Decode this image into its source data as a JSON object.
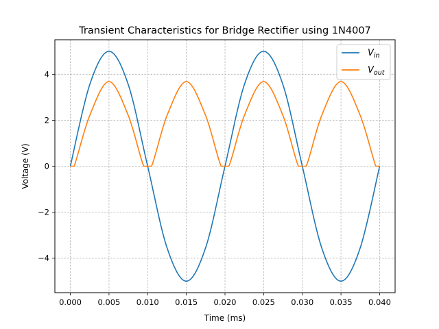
{
  "chart_data": {
    "type": "line",
    "title": "Transient Characteristics for Bridge Rectifier using 1N4007",
    "xlabel": "Time (ms)",
    "ylabel": "Voltage (V)",
    "xlim": [
      -0.002,
      0.042
    ],
    "ylim": [
      -5.5,
      5.5
    ],
    "xticks": [
      "0.000",
      "0.005",
      "0.010",
      "0.015",
      "0.020",
      "0.025",
      "0.030",
      "0.035",
      "0.040"
    ],
    "yticks": [
      "−4",
      "−2",
      "0",
      "2",
      "4"
    ],
    "grid": true,
    "legend_position": "top-right",
    "series": [
      {
        "name": "V",
        "subscript": "in",
        "color": "#1f77b4",
        "x": [
          0.0,
          0.0025,
          0.005,
          0.0075,
          0.01,
          0.0125,
          0.015,
          0.0175,
          0.02,
          0.0225,
          0.025,
          0.0275,
          0.03,
          0.0325,
          0.035,
          0.0375,
          0.04
        ],
        "y": [
          0.0,
          3.54,
          5.0,
          3.54,
          0.0,
          -3.54,
          -5.0,
          -3.54,
          0.0,
          3.54,
          5.0,
          3.54,
          0.0,
          -3.54,
          -5.0,
          -3.54,
          0.0
        ]
      },
      {
        "name": "V",
        "subscript": "out",
        "color": "#ff7f0e",
        "x": [
          0.0,
          0.0005,
          0.0025,
          0.005,
          0.0075,
          0.0095,
          0.0105,
          0.0125,
          0.015,
          0.0175,
          0.0195,
          0.0205,
          0.0225,
          0.025,
          0.0275,
          0.0295,
          0.0305,
          0.0325,
          0.035,
          0.0375,
          0.0395,
          0.04
        ],
        "y": [
          0.0,
          0.0,
          2.2,
          3.68,
          2.2,
          0.0,
          0.0,
          2.2,
          3.68,
          2.2,
          0.0,
          0.0,
          2.2,
          3.68,
          2.2,
          0.0,
          0.0,
          2.2,
          3.68,
          2.2,
          0.0,
          0.0
        ]
      }
    ]
  }
}
